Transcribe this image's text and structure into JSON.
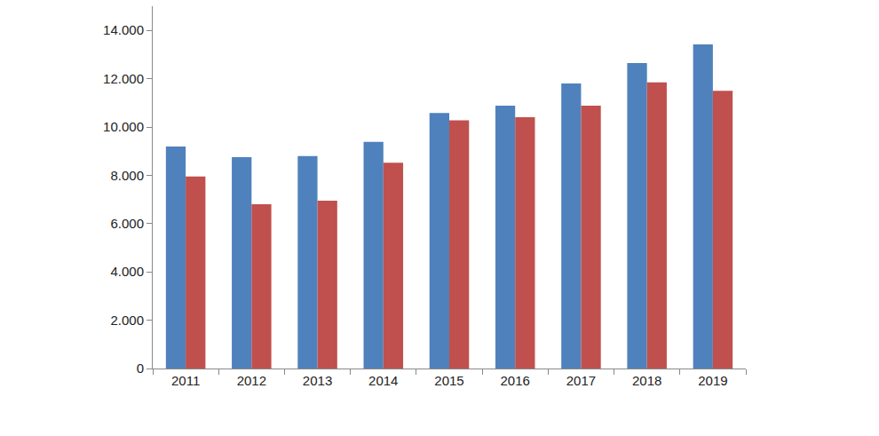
{
  "chart_data": {
    "type": "bar",
    "categories": [
      "2011",
      "2012",
      "2013",
      "2014",
      "2015",
      "2016",
      "2017",
      "2018",
      "2019"
    ],
    "series": [
      {
        "color": "#4f81bd",
        "values": [
          9190,
          8750,
          8800,
          9380,
          10580,
          10880,
          11800,
          12650,
          13420
        ]
      },
      {
        "color": "#c0504d",
        "values": [
          7950,
          6800,
          6950,
          8520,
          10280,
          10400,
          10880,
          11850,
          11500
        ]
      }
    ],
    "ylim": [
      0,
      15000
    ],
    "yticks": [
      0,
      {
        "value": 2000,
        "label": "2.000"
      },
      {
        "value": 4000,
        "label": "4.000"
      },
      {
        "value": 6000,
        "label": "6.000"
      },
      {
        "value": 8000,
        "label": "8.000"
      },
      {
        "value": 10000,
        "label": "10.000"
      },
      {
        "value": 12000,
        "label": "12.000"
      },
      {
        "value": 14000,
        "label": "14.000"
      }
    ],
    "grid": false
  }
}
